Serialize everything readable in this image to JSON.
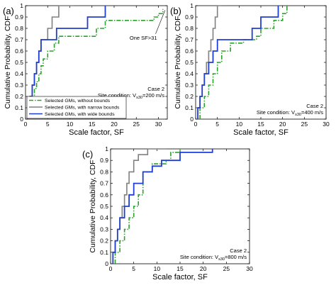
{
  "chart_data": [
    {
      "type": "line",
      "step": true,
      "panel_label": "(a)",
      "xlabel": "Scale factor, SF",
      "ylabel": "Cumulative Probability, CDF",
      "xlim": [
        0,
        32
      ],
      "ylim": [
        0,
        1
      ],
      "xticks": [
        "0",
        "5",
        "10",
        "15",
        "20",
        "25",
        "30"
      ],
      "yticks": [
        "0",
        "0.1",
        "0.2",
        "0.3",
        "0.4",
        "0.5",
        "0.6",
        "0.7",
        "0.8",
        "0.9",
        "1"
      ],
      "annotation_case": "Case 2",
      "annotation_site": "Site condition: V",
      "annotation_site_sub": "s30",
      "annotation_site_value": "=200 m/s",
      "callout": "One SF>31",
      "grid": false,
      "legend_position": "bottom-left",
      "legend": [
        "Selected GMs, without bounds",
        "Selected GMs, with narrow bounds",
        "Selected GMs, with wide bounds"
      ],
      "series": [
        {
          "name": "Selected GMs, without bounds",
          "color": "#2ca02c",
          "dash": "dash-dot",
          "points": [
            [
              0.5,
              0
            ],
            [
              0.5,
              0.03
            ],
            [
              1,
              0.03
            ],
            [
              1,
              0.1
            ],
            [
              1.5,
              0.1
            ],
            [
              1.5,
              0.17
            ],
            [
              2,
              0.17
            ],
            [
              2,
              0.27
            ],
            [
              2.5,
              0.27
            ],
            [
              2.5,
              0.33
            ],
            [
              3,
              0.33
            ],
            [
              3,
              0.4
            ],
            [
              3.5,
              0.4
            ],
            [
              3.5,
              0.47
            ],
            [
              4,
              0.47
            ],
            [
              4,
              0.53
            ],
            [
              5,
              0.53
            ],
            [
              5,
              0.6
            ],
            [
              6.5,
              0.6
            ],
            [
              6.5,
              0.67
            ],
            [
              7.5,
              0.67
            ],
            [
              7.5,
              0.73
            ],
            [
              16,
              0.73
            ],
            [
              16,
              0.8
            ],
            [
              18,
              0.8
            ],
            [
              18,
              0.87
            ],
            [
              29,
              0.87
            ],
            [
              29,
              0.9
            ],
            [
              30,
              0.9
            ],
            [
              30,
              0.93
            ],
            [
              31,
              0.93
            ],
            [
              31,
              0.97
            ]
          ]
        },
        {
          "name": "Selected GMs, with narrow bounds",
          "color": "#808080",
          "dash": "solid",
          "points": [
            [
              0.5,
              0
            ],
            [
              0.5,
              0.1
            ],
            [
              1,
              0.1
            ],
            [
              1,
              0.2
            ],
            [
              1.5,
              0.2
            ],
            [
              1.5,
              0.3
            ],
            [
              2,
              0.3
            ],
            [
              2,
              0.4
            ],
            [
              2.5,
              0.4
            ],
            [
              2.5,
              0.5
            ],
            [
              3,
              0.5
            ],
            [
              3,
              0.6
            ],
            [
              3.5,
              0.6
            ],
            [
              3.5,
              0.7
            ],
            [
              5,
              0.7
            ],
            [
              5,
              0.8
            ],
            [
              6,
              0.8
            ],
            [
              6,
              0.9
            ],
            [
              7.5,
              0.9
            ],
            [
              7.5,
              1
            ],
            [
              11,
              1
            ]
          ]
        },
        {
          "name": "Selected GMs, with wide bounds",
          "color": "#1f3fd0",
          "dash": "solid",
          "points": [
            [
              0.5,
              0
            ],
            [
              0.5,
              0.1
            ],
            [
              1,
              0.1
            ],
            [
              1,
              0.2
            ],
            [
              1.5,
              0.2
            ],
            [
              1.5,
              0.3
            ],
            [
              2,
              0.3
            ],
            [
              2,
              0.4
            ],
            [
              2.5,
              0.4
            ],
            [
              2.5,
              0.5
            ],
            [
              3,
              0.5
            ],
            [
              3,
              0.6
            ],
            [
              3.5,
              0.6
            ],
            [
              3.5,
              0.7
            ],
            [
              7,
              0.7
            ],
            [
              7,
              0.8
            ],
            [
              14,
              0.8
            ],
            [
              14,
              0.9
            ],
            [
              18,
              0.9
            ],
            [
              18,
              1
            ]
          ]
        }
      ]
    },
    {
      "type": "line",
      "step": true,
      "panel_label": "(b)",
      "xlabel": "Scale factor, SF",
      "ylabel": "Cumulative Probability, CDF",
      "xlim": [
        0,
        30
      ],
      "ylim": [
        0,
        1
      ],
      "xticks": [
        "0",
        "5",
        "10",
        "15",
        "20",
        "25",
        "30"
      ],
      "yticks": [
        "0",
        "0.1",
        "0.2",
        "0.3",
        "0.4",
        "0.5",
        "0.6",
        "0.7",
        "0.8",
        "0.9",
        "1"
      ],
      "annotation_case": "Case 2",
      "annotation_site": "Site condition: V",
      "annotation_site_sub": "s30",
      "annotation_site_value": "=400 m/s",
      "grid": false,
      "series": [
        {
          "name": "Selected GMs, without bounds",
          "color": "#2ca02c",
          "dash": "dash-dot",
          "points": [
            [
              1,
              0
            ],
            [
              1,
              0.1
            ],
            [
              2,
              0.1
            ],
            [
              2,
              0.2
            ],
            [
              3,
              0.2
            ],
            [
              3,
              0.3
            ],
            [
              4,
              0.3
            ],
            [
              4,
              0.4
            ],
            [
              5,
              0.4
            ],
            [
              5,
              0.5
            ],
            [
              6,
              0.5
            ],
            [
              6,
              0.6
            ],
            [
              8,
              0.6
            ],
            [
              8,
              0.67
            ],
            [
              11,
              0.67
            ],
            [
              11,
              0.7
            ],
            [
              14,
              0.7
            ],
            [
              14,
              0.73
            ],
            [
              15,
              0.73
            ],
            [
              15,
              0.8
            ],
            [
              18,
              0.8
            ],
            [
              18,
              0.87
            ],
            [
              20,
              0.87
            ],
            [
              20,
              0.93
            ],
            [
              21,
              0.93
            ],
            [
              21,
              1
            ]
          ]
        },
        {
          "name": "Selected GMs, with narrow bounds",
          "color": "#808080",
          "dash": "solid",
          "points": [
            [
              0.5,
              0
            ],
            [
              0.5,
              0.1
            ],
            [
              1,
              0.1
            ],
            [
              1,
              0.2
            ],
            [
              1.5,
              0.2
            ],
            [
              1.5,
              0.3
            ],
            [
              2,
              0.3
            ],
            [
              2,
              0.4
            ],
            [
              2.5,
              0.4
            ],
            [
              2.5,
              0.5
            ],
            [
              3,
              0.5
            ],
            [
              3,
              0.6
            ],
            [
              3.5,
              0.6
            ],
            [
              3.5,
              0.7
            ],
            [
              4,
              0.7
            ],
            [
              4,
              0.8
            ],
            [
              4.5,
              0.8
            ],
            [
              4.5,
              0.9
            ],
            [
              5,
              0.9
            ],
            [
              5,
              1
            ],
            [
              6,
              1
            ]
          ]
        },
        {
          "name": "Selected GMs, with wide bounds",
          "color": "#1f3fd0",
          "dash": "solid",
          "points": [
            [
              0.5,
              0
            ],
            [
              0.5,
              0.1
            ],
            [
              1,
              0.1
            ],
            [
              1,
              0.2
            ],
            [
              1.5,
              0.2
            ],
            [
              1.5,
              0.3
            ],
            [
              2,
              0.3
            ],
            [
              2,
              0.4
            ],
            [
              3,
              0.4
            ],
            [
              3,
              0.5
            ],
            [
              4,
              0.5
            ],
            [
              4,
              0.6
            ],
            [
              5,
              0.6
            ],
            [
              5,
              0.7
            ],
            [
              13,
              0.7
            ],
            [
              13,
              0.8
            ],
            [
              15,
              0.8
            ],
            [
              15,
              0.9
            ],
            [
              19,
              0.9
            ],
            [
              19,
              1
            ]
          ]
        }
      ]
    },
    {
      "type": "line",
      "step": true,
      "panel_label": "(c)",
      "xlabel": "Scale factor, SF",
      "ylabel": "Cumulative Probability, CDF",
      "xlim": [
        0,
        30
      ],
      "ylim": [
        0,
        1
      ],
      "xticks": [
        "0",
        "5",
        "10",
        "15",
        "20",
        "25",
        "30"
      ],
      "yticks": [
        "0",
        "0.1",
        "0.2",
        "0.3",
        "0.4",
        "0.5",
        "0.6",
        "0.7",
        "0.8",
        "0.9",
        "1"
      ],
      "annotation_case": "Case 2",
      "annotation_site": "Site condition: V",
      "annotation_site_sub": "s30",
      "annotation_site_value": "=800 m/s",
      "grid": false,
      "series": [
        {
          "name": "Selected GMs, without bounds",
          "color": "#2ca02c",
          "dash": "dash-dot",
          "points": [
            [
              1,
              0
            ],
            [
              1,
              0.1
            ],
            [
              2,
              0.1
            ],
            [
              2,
              0.2
            ],
            [
              3,
              0.2
            ],
            [
              3,
              0.3
            ],
            [
              4,
              0.3
            ],
            [
              4,
              0.4
            ],
            [
              5,
              0.4
            ],
            [
              5,
              0.5
            ],
            [
              6,
              0.5
            ],
            [
              6,
              0.6
            ],
            [
              7,
              0.6
            ],
            [
              7,
              0.8
            ],
            [
              9,
              0.8
            ],
            [
              9,
              0.87
            ],
            [
              12,
              0.87
            ],
            [
              12,
              0.9
            ],
            [
              13,
              0.9
            ],
            [
              13,
              0.97
            ],
            [
              15,
              0.97
            ],
            [
              15,
              1
            ]
          ]
        },
        {
          "name": "Selected GMs, with narrow bounds",
          "color": "#808080",
          "dash": "solid",
          "points": [
            [
              0.5,
              0
            ],
            [
              0.5,
              0.1
            ],
            [
              1,
              0.1
            ],
            [
              1,
              0.2
            ],
            [
              1.5,
              0.2
            ],
            [
              1.5,
              0.3
            ],
            [
              2,
              0.3
            ],
            [
              2,
              0.4
            ],
            [
              2.5,
              0.4
            ],
            [
              2.5,
              0.5
            ],
            [
              3,
              0.5
            ],
            [
              3,
              0.6
            ],
            [
              3.5,
              0.6
            ],
            [
              3.5,
              0.7
            ],
            [
              4,
              0.7
            ],
            [
              4,
              0.8
            ],
            [
              5,
              0.8
            ],
            [
              5,
              0.9
            ],
            [
              6,
              0.9
            ],
            [
              6,
              0.95
            ],
            [
              8,
              0.95
            ],
            [
              8,
              1
            ],
            [
              12,
              1
            ]
          ]
        },
        {
          "name": "Selected GMs, with wide bounds",
          "color": "#1f3fd0",
          "dash": "solid",
          "points": [
            [
              0.5,
              0
            ],
            [
              0.5,
              0.1
            ],
            [
              1,
              0.1
            ],
            [
              1,
              0.2
            ],
            [
              1.5,
              0.2
            ],
            [
              1.5,
              0.3
            ],
            [
              2,
              0.3
            ],
            [
              2,
              0.4
            ],
            [
              3,
              0.4
            ],
            [
              3,
              0.5
            ],
            [
              4,
              0.5
            ],
            [
              4,
              0.6
            ],
            [
              5,
              0.6
            ],
            [
              5,
              0.7
            ],
            [
              7,
              0.7
            ],
            [
              7,
              0.8
            ],
            [
              9,
              0.8
            ],
            [
              9,
              0.85
            ],
            [
              11,
              0.85
            ],
            [
              11,
              0.9
            ],
            [
              15,
              0.9
            ],
            [
              15,
              0.97
            ],
            [
              22,
              0.97
            ],
            [
              22,
              1
            ]
          ]
        }
      ]
    }
  ]
}
